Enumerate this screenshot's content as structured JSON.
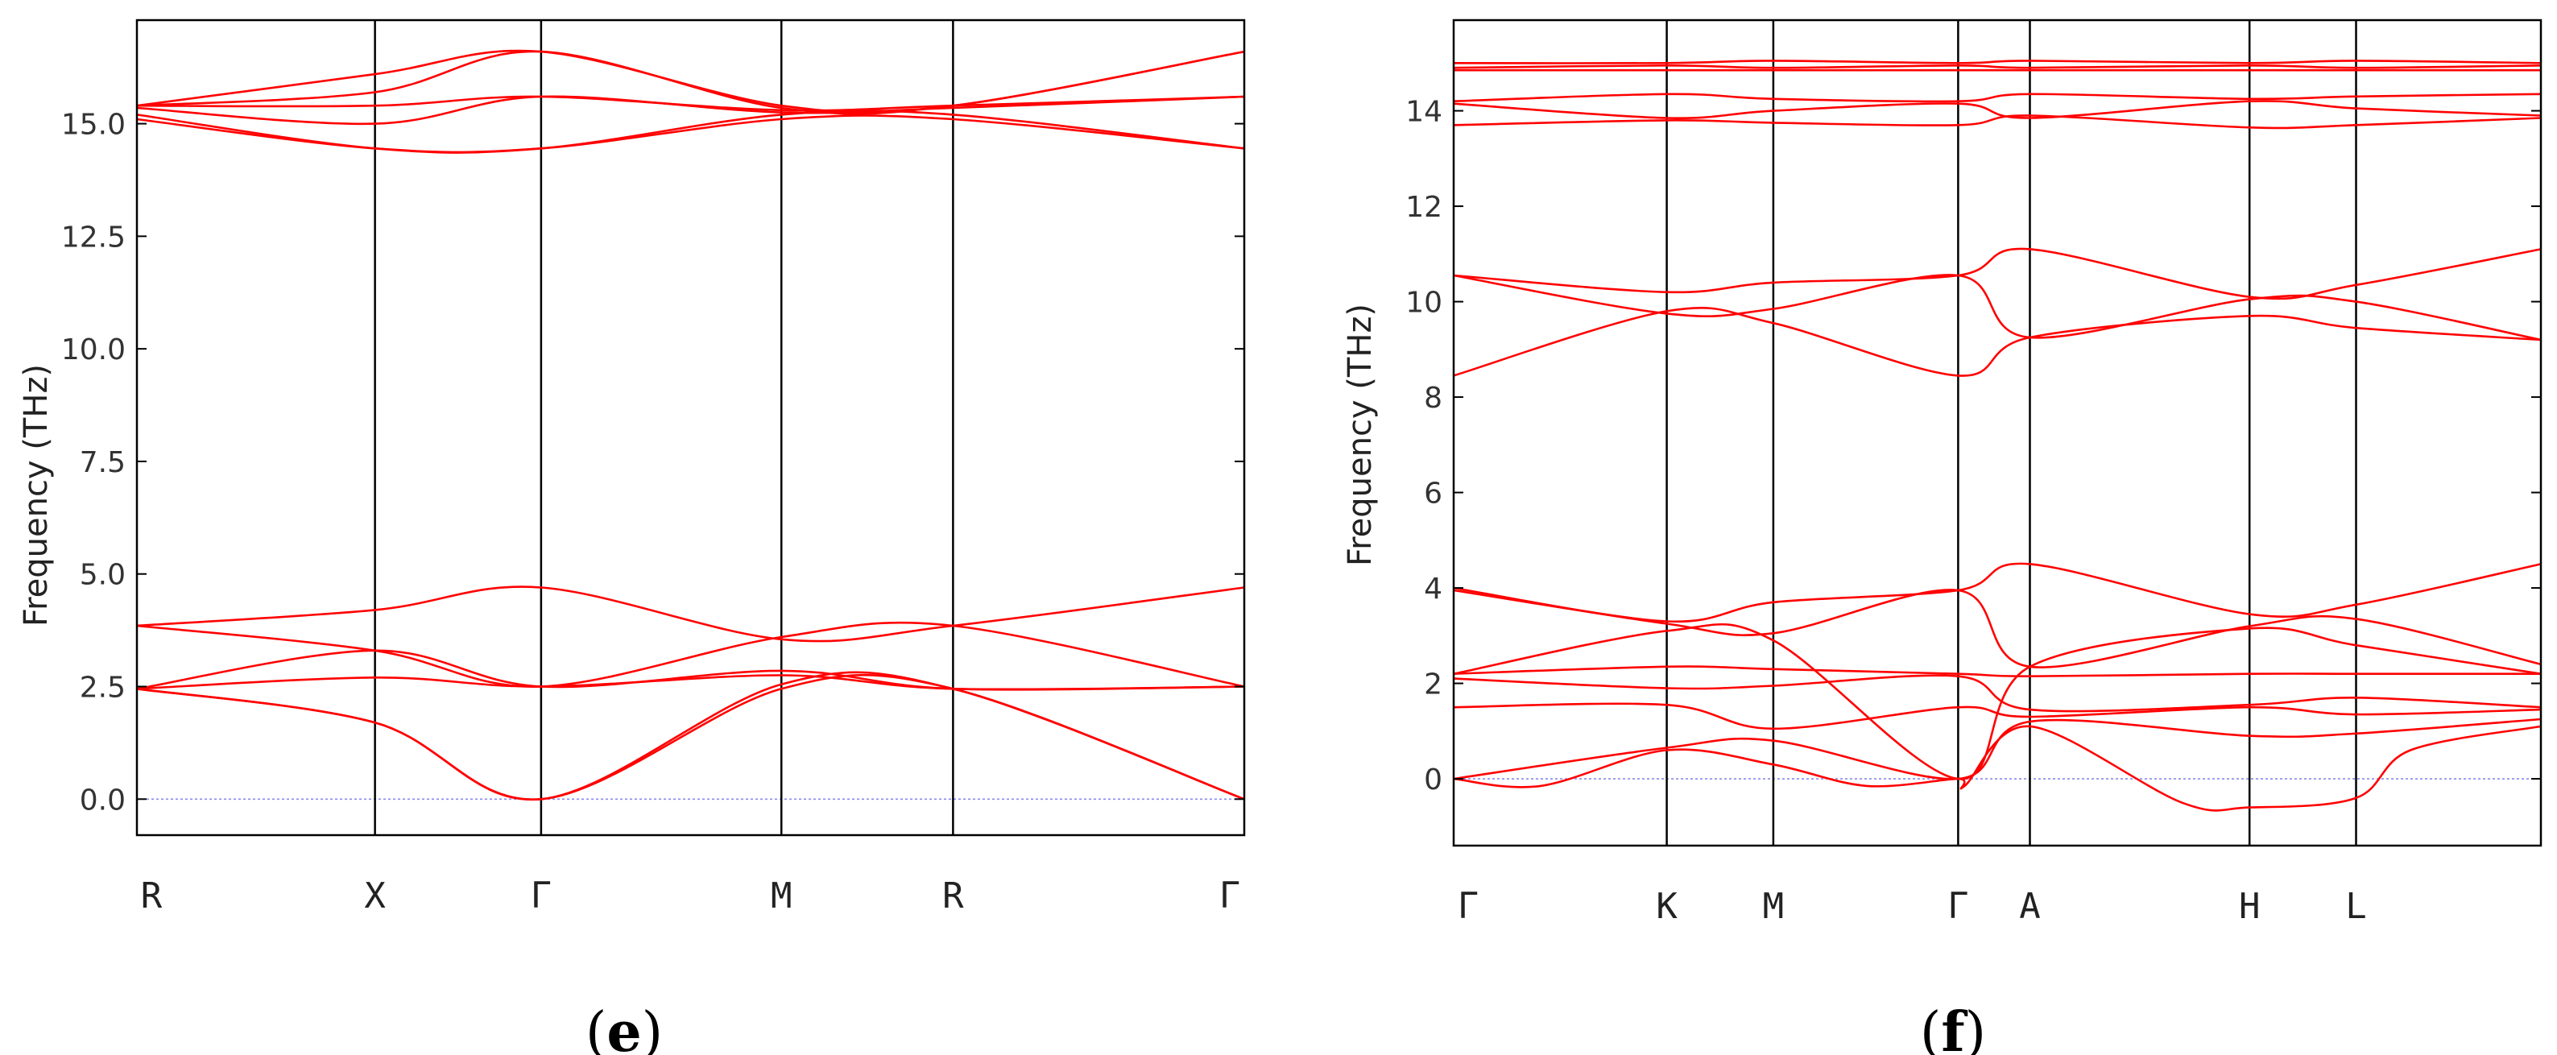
{
  "figure": {
    "panels": [
      {
        "label_open": "(",
        "label_letter": "e",
        "label_close": ")"
      },
      {
        "label_open": "(",
        "label_letter": "f",
        "label_close": ")"
      }
    ]
  },
  "chart_data": [
    {
      "type": "line",
      "panel": "e",
      "title": "",
      "xlabel": "",
      "ylabel": "Frequency (THz)",
      "ylim": [
        -0.8,
        17.3
      ],
      "yticks": [
        0.0,
        2.5,
        5.0,
        7.5,
        10.0,
        12.5,
        15.0
      ],
      "ytick_labels": [
        "0.0",
        "2.5",
        "5.0",
        "7.5",
        "10.0",
        "12.5",
        "15.0"
      ],
      "x_range": [
        0,
        1
      ],
      "kpoints": [
        {
          "label": "R",
          "x": 0.0
        },
        {
          "label": "X",
          "x": 0.215
        },
        {
          "label": "Γ",
          "x": 0.365
        },
        {
          "label": "M",
          "x": 0.582
        },
        {
          "label": "R",
          "x": 0.737
        },
        {
          "label": "Γ",
          "x": 1.0
        }
      ],
      "zero_line": true,
      "line_color": "#ff0000",
      "series": [
        {
          "x": [
            0,
            0.215,
            0.365,
            0.582,
            0.737,
            1.0
          ],
          "y": [
            2.45,
            1.7,
            0.0,
            2.45,
            2.45,
            0.0
          ]
        },
        {
          "x": [
            0,
            0.215,
            0.365,
            0.582,
            0.737,
            1.0
          ],
          "y": [
            2.45,
            1.7,
            0.0,
            2.55,
            2.45,
            0.0
          ]
        },
        {
          "x": [
            0,
            0.215,
            0.365,
            0.582,
            0.737,
            1.0
          ],
          "y": [
            2.45,
            2.7,
            2.5,
            2.75,
            2.45,
            2.5
          ]
        },
        {
          "x": [
            0,
            0.215,
            0.365,
            0.582,
            0.737,
            1.0
          ],
          "y": [
            2.45,
            3.3,
            2.5,
            2.85,
            2.45,
            2.5
          ]
        },
        {
          "x": [
            0,
            0.215,
            0.365,
            0.582,
            0.737,
            1.0
          ],
          "y": [
            3.85,
            3.3,
            2.5,
            3.6,
            3.85,
            2.5
          ]
        },
        {
          "x": [
            0,
            0.215,
            0.365,
            0.582,
            0.737,
            1.0
          ],
          "y": [
            3.85,
            4.2,
            4.7,
            3.55,
            3.85,
            4.7
          ]
        },
        {
          "x": [
            0,
            0.215,
            0.365,
            0.582,
            0.737,
            1.0
          ],
          "y": [
            15.1,
            14.45,
            14.45,
            15.1,
            15.1,
            14.45
          ]
        },
        {
          "x": [
            0,
            0.215,
            0.365,
            0.582,
            0.737,
            1.0
          ],
          "y": [
            15.2,
            14.45,
            14.45,
            15.2,
            15.2,
            14.45
          ]
        },
        {
          "x": [
            0,
            0.215,
            0.365,
            0.582,
            0.737,
            1.0
          ],
          "y": [
            15.35,
            15.0,
            15.6,
            15.25,
            15.35,
            15.6
          ]
        },
        {
          "x": [
            0,
            0.215,
            0.365,
            0.582,
            0.737,
            1.0
          ],
          "y": [
            15.4,
            15.4,
            15.6,
            15.3,
            15.4,
            15.6
          ]
        },
        {
          "x": [
            0,
            0.215,
            0.365,
            0.582,
            0.737,
            1.0
          ],
          "y": [
            15.4,
            15.7,
            16.6,
            15.35,
            15.4,
            16.6
          ]
        },
        {
          "x": [
            0,
            0.215,
            0.365,
            0.582,
            0.737,
            1.0
          ],
          "y": [
            15.4,
            16.1,
            16.6,
            15.4,
            15.4,
            16.6
          ]
        }
      ]
    },
    {
      "type": "line",
      "panel": "f",
      "title": "",
      "xlabel": "",
      "ylabel": "Frequency (THz)",
      "ylim": [
        -1.4,
        15.9
      ],
      "yticks": [
        0,
        2,
        4,
        6,
        8,
        10,
        12,
        14
      ],
      "ytick_labels": [
        "0",
        "2",
        "4",
        "6",
        "8",
        "10",
        "12",
        "14"
      ],
      "x_range": [
        0,
        1
      ],
      "kpoints": [
        {
          "label": "Γ",
          "x": 0.0
        },
        {
          "label": "K",
          "x": 0.196
        },
        {
          "label": "M",
          "x": 0.294
        },
        {
          "label": "Γ",
          "x": 0.464
        },
        {
          "label": "A",
          "x": 0.53
        },
        {
          "label": "H",
          "x": 0.732
        },
        {
          "label": "L",
          "x": 0.83
        },
        {
          "label": "",
          "x": 1.0
        }
      ],
      "zero_line": true,
      "line_color": "#ff0000",
      "series": [
        {
          "x": [
            0,
            0.08,
            0.196,
            0.294,
            0.38,
            0.464,
            0.47,
            0.53,
            0.67,
            0.732,
            0.83,
            0.88,
            1.0
          ],
          "y": [
            0,
            -0.15,
            0.6,
            0.3,
            -0.15,
            0.0,
            -0.15,
            1.1,
            -0.5,
            -0.6,
            -0.4,
            0.6,
            1.1
          ]
        },
        {
          "x": [
            0,
            0.196,
            0.294,
            0.464,
            0.53,
            0.732,
            0.83,
            1.0
          ],
          "y": [
            0,
            0.65,
            0.8,
            0.0,
            1.2,
            0.9,
            0.95,
            1.25
          ]
        },
        {
          "x": [
            0,
            0.196,
            0.294,
            0.464,
            0.53,
            0.732,
            0.83,
            1.0
          ],
          "y": [
            1.5,
            1.55,
            1.05,
            1.5,
            1.3,
            1.5,
            1.35,
            1.45
          ]
        },
        {
          "x": [
            0,
            0.196,
            0.294,
            0.464,
            0.53,
            0.732,
            0.83,
            1.0
          ],
          "y": [
            2.1,
            1.9,
            1.95,
            2.15,
            1.45,
            1.55,
            1.7,
            1.5
          ]
        },
        {
          "x": [
            0,
            0.196,
            0.294,
            0.464,
            0.53,
            0.732,
            0.83,
            1.0
          ],
          "y": [
            2.2,
            2.35,
            2.3,
            2.2,
            2.15,
            2.2,
            2.2,
            2.2
          ]
        },
        {
          "x": [
            0,
            0.196,
            0.294,
            0.464,
            0.53,
            0.732,
            0.83,
            1.0
          ],
          "y": [
            2.2,
            3.1,
            2.9,
            0.0,
            2.35,
            3.15,
            2.8,
            2.2
          ]
        },
        {
          "x": [
            0,
            0.196,
            0.294,
            0.464,
            0.53,
            0.732,
            0.83,
            1.0
          ],
          "y": [
            3.95,
            3.25,
            3.05,
            3.95,
            2.35,
            3.2,
            3.35,
            2.4
          ]
        },
        {
          "x": [
            0,
            0.196,
            0.294,
            0.464,
            0.53,
            0.732,
            0.83,
            1.0
          ],
          "y": [
            4.0,
            3.3,
            3.7,
            3.95,
            4.5,
            3.45,
            3.65,
            4.5
          ]
        },
        {
          "x": [
            0,
            0.196,
            0.294,
            0.464,
            0.53,
            0.732,
            0.83,
            1.0
          ],
          "y": [
            8.45,
            9.8,
            9.55,
            8.45,
            9.25,
            9.7,
            9.45,
            9.2
          ]
        },
        {
          "x": [
            0,
            0.196,
            0.294,
            0.464,
            0.53,
            0.732,
            0.83,
            1.0
          ],
          "y": [
            10.55,
            9.75,
            9.85,
            10.55,
            9.25,
            10.05,
            10.0,
            9.2
          ]
        },
        {
          "x": [
            0,
            0.196,
            0.294,
            0.464,
            0.53,
            0.732,
            0.83,
            1.0
          ],
          "y": [
            10.55,
            10.2,
            10.4,
            10.55,
            11.1,
            10.1,
            10.35,
            11.1
          ]
        },
        {
          "x": [
            0,
            0.196,
            0.294,
            0.464,
            0.53,
            0.732,
            0.83,
            1.0
          ],
          "y": [
            13.7,
            13.8,
            13.75,
            13.7,
            13.9,
            13.65,
            13.7,
            13.85
          ]
        },
        {
          "x": [
            0,
            0.196,
            0.294,
            0.464,
            0.53,
            0.732,
            0.83,
            1.0
          ],
          "y": [
            14.15,
            13.85,
            14.0,
            14.15,
            13.85,
            14.2,
            14.05,
            13.9
          ]
        },
        {
          "x": [
            0,
            0.196,
            0.294,
            0.464,
            0.53,
            0.732,
            0.83,
            1.0
          ],
          "y": [
            14.2,
            14.35,
            14.25,
            14.2,
            14.35,
            14.25,
            14.3,
            14.35
          ]
        },
        {
          "x": [
            0,
            0.196,
            0.294,
            0.464,
            0.53,
            0.732,
            0.83,
            1.0
          ],
          "y": [
            14.85,
            14.85,
            14.85,
            14.85,
            14.85,
            14.85,
            14.85,
            14.85
          ]
        },
        {
          "x": [
            0,
            0.196,
            0.294,
            0.464,
            0.53,
            0.732,
            0.83,
            1.0
          ],
          "y": [
            14.9,
            14.95,
            14.9,
            14.95,
            14.9,
            14.95,
            14.9,
            14.95
          ]
        },
        {
          "x": [
            0,
            0.196,
            0.294,
            0.464,
            0.53,
            0.732,
            0.83,
            1.0
          ],
          "y": [
            15.0,
            15.0,
            15.05,
            15.0,
            15.05,
            15.0,
            15.05,
            15.0
          ]
        }
      ]
    }
  ]
}
